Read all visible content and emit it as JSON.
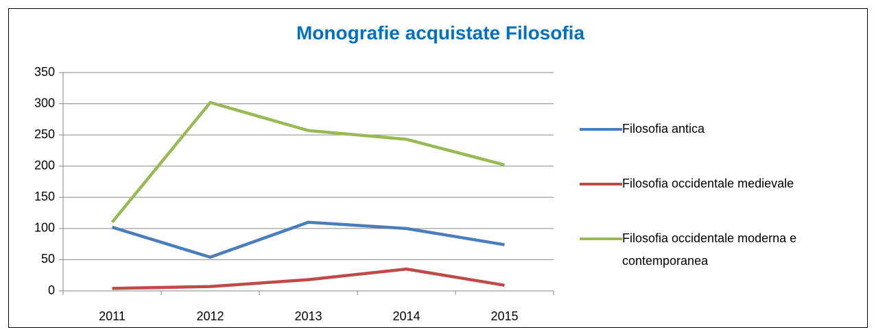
{
  "chart_data": {
    "type": "line",
    "title": "Monografie acquistate Filosofia",
    "categories": [
      "2011",
      "2012",
      "2013",
      "2014",
      "2015"
    ],
    "series": [
      {
        "name": "Filosofia antica",
        "color": "#4a7ebb",
        "values": [
          102,
          54,
          110,
          100,
          74
        ]
      },
      {
        "name": "Filosofia occidentale medievale",
        "color": "#be4b48",
        "values": [
          4,
          7,
          18,
          35,
          9
        ]
      },
      {
        "name": "Filosofia occidentale moderna e contemporanea",
        "color": "#98b954",
        "values": [
          110,
          302,
          257,
          243,
          202
        ]
      }
    ],
    "ylim": [
      0,
      350
    ],
    "yticks": [
      0,
      50,
      100,
      150,
      200,
      250,
      300,
      350
    ],
    "grid": true,
    "legend": "right"
  }
}
